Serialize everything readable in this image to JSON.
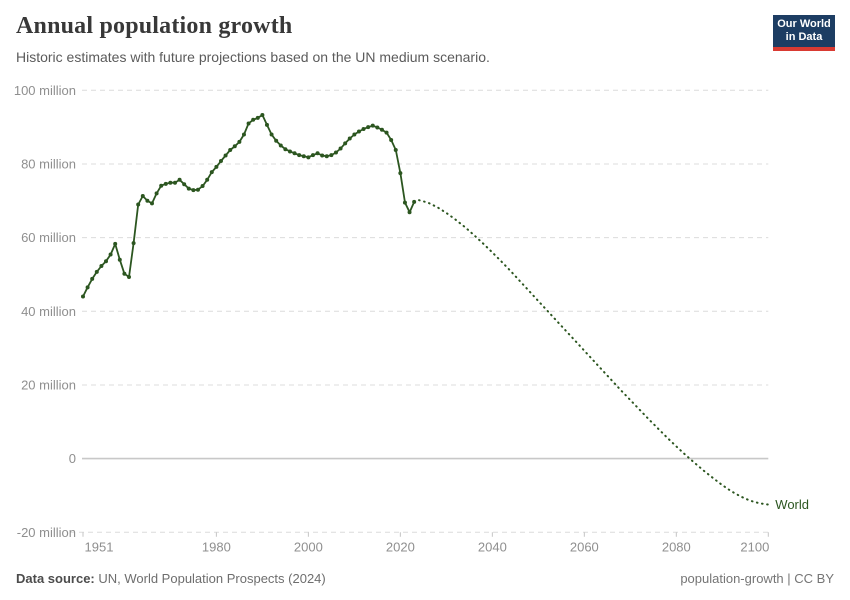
{
  "header": {
    "title": "Annual population growth",
    "subtitle": "Historic estimates with future projections based on the UN medium scenario.",
    "logo_line1": "Our World",
    "logo_line2": "in Data"
  },
  "footer": {
    "source_label": "Data source:",
    "source_text": " UN, World Population Prospects (2024)",
    "right_text": "population-growth | CC BY"
  },
  "colors": {
    "line_green": "#2c5620",
    "grid": "#dcdcdc",
    "zero_line": "#c8c8c8",
    "tick": "#c4c4c4",
    "axis_label": "#8f8f8f",
    "logo_navy": "#1d3d63",
    "logo_red": "#d93a32"
  },
  "chart_data": {
    "type": "line",
    "title": "Annual population growth",
    "entity_label": "World",
    "unit": "people per year (millions)",
    "xlim": [
      1951,
      2100
    ],
    "ylim_millions": [
      -20,
      100
    ],
    "grid": "dashed-horizontal",
    "legend_position": "end-of-line",
    "x_ticks": [
      1951,
      1980,
      2000,
      2020,
      2040,
      2060,
      2080,
      2100
    ],
    "x_tick_labels": [
      "1951",
      "1980",
      "2000",
      "2020",
      "2040",
      "2060",
      "2080",
      "2100"
    ],
    "y_ticks": [
      -20,
      0,
      20,
      40,
      60,
      80,
      100
    ],
    "y_tick_labels": [
      "-20 million",
      "0",
      "20 million",
      "40 million",
      "60 million",
      "80 million",
      "100 million"
    ],
    "series": [
      {
        "name": "World — historic estimates",
        "style": "solid-with-markers",
        "start_year": 1951,
        "step": 1,
        "values_millions": [
          44.0,
          46.5,
          48.8,
          50.7,
          52.3,
          53.6,
          55.4,
          58.3,
          54.0,
          50.2,
          49.3,
          58.5,
          69.0,
          71.3,
          70.0,
          69.3,
          72.0,
          74.1,
          74.6,
          74.9,
          74.9,
          75.7,
          74.5,
          73.3,
          72.9,
          73.0,
          74.0,
          75.7,
          77.8,
          79.2,
          80.8,
          82.3,
          83.8,
          84.8,
          86.0,
          88.0,
          91.0,
          92.0,
          92.5,
          93.3,
          90.6,
          88.0,
          86.3,
          85.0,
          84.0,
          83.4,
          82.9,
          82.4,
          82.1,
          81.8,
          82.4,
          82.9,
          82.3,
          82.1,
          82.4,
          83.1,
          84.2,
          85.6,
          86.9,
          88.0,
          88.8,
          89.5,
          90.0,
          90.4,
          89.9,
          89.3,
          88.5,
          86.5,
          83.8,
          77.5,
          69.5,
          66.9,
          69.7
        ]
      },
      {
        "name": "World — UN medium scenario projection",
        "style": "dotted",
        "start_year": 2024,
        "step": 2,
        "values_millions": [
          70.2,
          69.5,
          68.3,
          66.7,
          64.9,
          62.9,
          60.7,
          58.4,
          56.0,
          53.5,
          50.9,
          48.2,
          45.5,
          42.8,
          40.1,
          37.4,
          34.7,
          32.0,
          29.3,
          26.6,
          23.9,
          21.2,
          18.5,
          15.9,
          13.3,
          10.7,
          8.2,
          5.7,
          3.3,
          1.0,
          -1.2,
          -3.3,
          -5.3,
          -7.2,
          -8.9,
          -10.3,
          -11.4,
          -12.1,
          -12.5
        ]
      }
    ]
  }
}
